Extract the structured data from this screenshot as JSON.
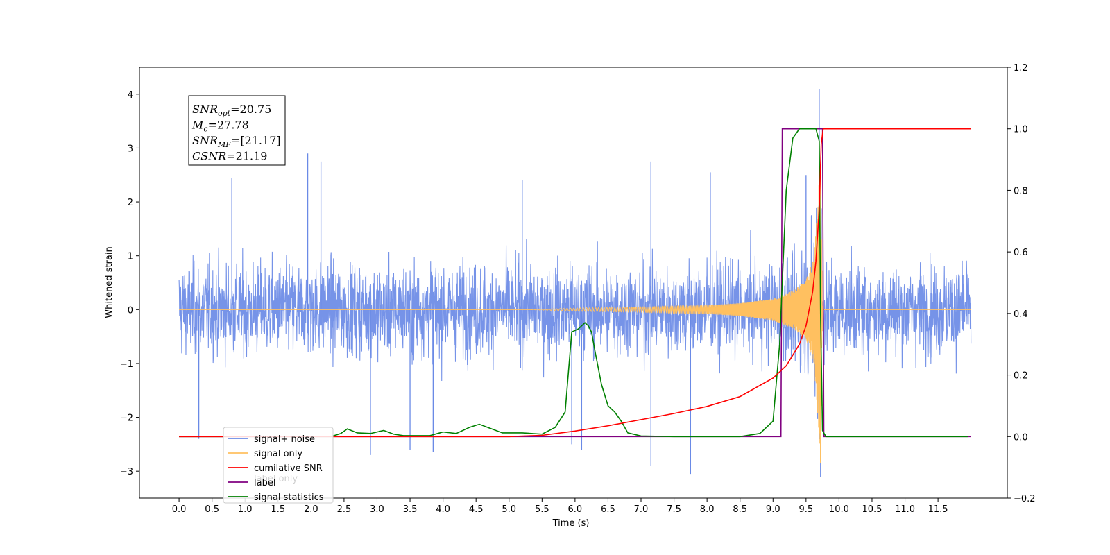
{
  "chart_data": {
    "type": "line",
    "xlabel": "Time (s)",
    "ylabel": "Whitened strain",
    "xlim": [
      -0.6,
      12.55
    ],
    "ylim": [
      -3.5,
      4.5
    ],
    "y2lim": [
      -0.2,
      1.2
    ],
    "x_ticks": [
      "0.0",
      "0.5",
      "1.0",
      "1.5",
      "2.0",
      "2.5",
      "3.0",
      "3.5",
      "4.0",
      "4.5",
      "5.0",
      "5.5",
      "6.0",
      "6.5",
      "7.0",
      "7.5",
      "8.0",
      "8.5",
      "9.0",
      "9.5",
      "10.0",
      "10.5",
      "11.0",
      "11.5"
    ],
    "y_ticks": [
      "−3",
      "−2",
      "−1",
      "0",
      "1",
      "2",
      "3",
      "4"
    ],
    "y2_ticks": [
      "−0.2",
      "0.0",
      "0.2",
      "0.4",
      "0.6",
      "0.8",
      "1.0",
      "1.2"
    ],
    "grid": false,
    "legend_position": "bottom-left",
    "series": [
      {
        "name": "signal+ noise",
        "axis": "left",
        "color": "#6a8ae6",
        "amplitude_range": [
          -3.1,
          4.1
        ],
        "spikes": [
          [
            0.3,
            -2.4
          ],
          [
            0.8,
            2.45
          ],
          [
            1.95,
            2.9
          ],
          [
            2.15,
            2.75
          ],
          [
            2.9,
            -2.7
          ],
          [
            3.5,
            -2.6
          ],
          [
            3.85,
            -2.65
          ],
          [
            5.2,
            2.4
          ],
          [
            5.95,
            -2.5
          ],
          [
            6.1,
            -2.6
          ],
          [
            7.15,
            2.75
          ],
          [
            7.15,
            -2.9
          ],
          [
            7.75,
            -3.05
          ],
          [
            8.05,
            2.55
          ],
          [
            9.5,
            2.5
          ],
          [
            9.7,
            4.1
          ],
          [
            9.72,
            -3.1
          ]
        ]
      },
      {
        "name": "signal only",
        "axis": "left",
        "color": "#ffc060",
        "x": [
          0,
          5.3,
          6.0,
          7.0,
          8.0,
          8.5,
          9.0,
          9.3,
          9.5,
          9.62,
          9.68,
          9.72,
          9.75,
          12.0
        ],
        "envelope": [
          0,
          0,
          0.03,
          0.05,
          0.08,
          0.12,
          0.2,
          0.35,
          0.55,
          1.0,
          2.0,
          3.0,
          0,
          0
        ]
      },
      {
        "name": "cumilative SNR",
        "axis": "right",
        "color": "#ff0000",
        "x": [
          0.0,
          5.0,
          5.5,
          6.0,
          6.5,
          7.0,
          7.5,
          8.0,
          8.5,
          9.0,
          9.2,
          9.4,
          9.5,
          9.6,
          9.65,
          9.7,
          9.73,
          9.76,
          12.0
        ],
        "y": [
          0.0,
          0.0,
          0.004,
          0.018,
          0.035,
          0.055,
          0.075,
          0.098,
          0.13,
          0.19,
          0.23,
          0.3,
          0.36,
          0.47,
          0.57,
          0.74,
          0.95,
          1.0,
          1.0
        ]
      },
      {
        "name": "label",
        "axis": "right",
        "color": "#800080",
        "x": [
          0.0,
          9.12,
          9.14,
          9.75,
          9.77,
          12.0
        ],
        "y": [
          0.0,
          0.0,
          1.0,
          1.0,
          0.0,
          0.0
        ]
      },
      {
        "name": "signal statistics",
        "axis": "right",
        "color": "#008000",
        "x": [
          0.0,
          2.3,
          2.45,
          2.55,
          2.7,
          2.9,
          3.1,
          3.25,
          3.4,
          3.8,
          4.0,
          4.2,
          4.4,
          4.55,
          4.7,
          4.9,
          5.2,
          5.5,
          5.7,
          5.85,
          5.95,
          6.05,
          6.15,
          6.2,
          6.25,
          6.3,
          6.4,
          6.5,
          6.6,
          6.7,
          6.8,
          7.0,
          7.5,
          8.5,
          8.8,
          9.0,
          9.1,
          9.2,
          9.3,
          9.4,
          9.65,
          9.7,
          9.72,
          9.75,
          9.8,
          11.95
        ],
        "y": [
          0.0,
          0.0,
          0.01,
          0.025,
          0.012,
          0.01,
          0.02,
          0.008,
          0.003,
          0.003,
          0.015,
          0.01,
          0.03,
          0.04,
          0.028,
          0.012,
          0.012,
          0.008,
          0.03,
          0.08,
          0.34,
          0.35,
          0.37,
          0.36,
          0.34,
          0.28,
          0.17,
          0.1,
          0.08,
          0.05,
          0.012,
          0.002,
          0.0,
          0.0,
          0.01,
          0.05,
          0.3,
          0.8,
          0.97,
          1.0,
          1.0,
          0.96,
          0.4,
          0.02,
          0.0,
          0.0
        ]
      }
    ],
    "annotation": {
      "lines": [
        {
          "name": "SNR",
          "sub": "opt",
          "value": "=20.75"
        },
        {
          "name": "M",
          "sub": "c",
          "value": "=27.78"
        },
        {
          "name": "SNR",
          "sub": "MF",
          "value": "=[21.17]"
        },
        {
          "name": "CSNR",
          "sub": "",
          "value": "=21.19"
        }
      ]
    },
    "legend": [
      "signal+ noise",
      "signal only",
      "cumilative SNR",
      "label",
      "signal statistics"
    ],
    "legend_overlap_text": "label only"
  }
}
